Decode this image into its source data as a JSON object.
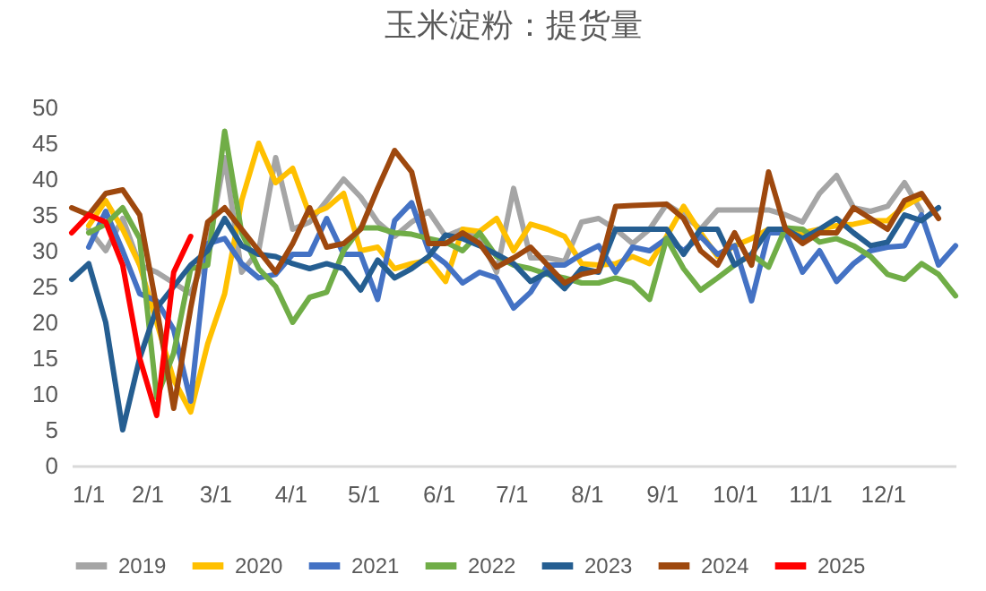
{
  "chart_data": {
    "type": "line",
    "title": "玉米淀粉：提货量",
    "x": [
      "--01-01",
      "--01-08",
      "--01-15",
      "--01-22",
      "--01-29",
      "--02-05",
      "--02-12",
      "--02-19",
      "--02-26",
      "--03-05",
      "--03-12",
      "--03-19",
      "--03-26",
      "--04-02",
      "--04-09",
      "--04-16",
      "--04-23",
      "--04-30",
      "--05-07",
      "--05-14",
      "--05-21",
      "--05-28",
      "--06-04",
      "--06-11",
      "--06-18",
      "--06-25",
      "--07-02",
      "--07-09",
      "--07-16",
      "--07-23",
      "--07-30",
      "--08-06",
      "--08-13",
      "--08-20",
      "--08-27",
      "--09-03",
      "--09-10",
      "--09-17",
      "--09-24",
      "--10-01",
      "--10-08",
      "--10-15",
      "--10-22",
      "--10-29",
      "--11-05",
      "--11-12",
      "--11-19",
      "--11-26",
      "--12-03",
      "--12-10",
      "--12-17",
      "--12-24",
      "--12-31"
    ],
    "xlim": [
      "--01-01",
      "--12-31"
    ],
    "xticks": [
      {
        "value": "--01-01",
        "label": "1/1"
      },
      {
        "value": "--02-01",
        "label": "2/1"
      },
      {
        "value": "--03-01",
        "label": "3/1"
      },
      {
        "value": "--04-01",
        "label": "4/1"
      },
      {
        "value": "--05-01",
        "label": "5/1"
      },
      {
        "value": "--06-01",
        "label": "6/1"
      },
      {
        "value": "--07-01",
        "label": "7/1"
      },
      {
        "value": "--08-01",
        "label": "8/1"
      },
      {
        "value": "--09-01",
        "label": "9/1"
      },
      {
        "value": "--10-01",
        "label": "10/1"
      },
      {
        "value": "--11-01",
        "label": "11/1"
      },
      {
        "value": "--12-01",
        "label": "12/1"
      }
    ],
    "ylim": [
      0,
      50
    ],
    "yticks": [
      0,
      5,
      10,
      15,
      20,
      25,
      30,
      35,
      40,
      45,
      50
    ],
    "grid": false,
    "legend": "bottom",
    "line_style": "solid",
    "series": [
      {
        "name": "2019",
        "color": "#a5a5a5",
        "values": [
          null,
          33,
          30,
          34.5,
          28,
          27,
          25.5,
          24,
          30,
          43,
          27,
          30,
          43,
          33,
          34,
          37,
          40,
          37.5,
          34,
          32,
          34,
          35.5,
          32,
          33,
          32,
          27,
          38.7,
          29,
          29,
          28.5,
          34,
          34.5,
          33,
          31,
          33,
          36.5,
          35,
          33,
          35.7,
          35.7,
          35.7,
          35.7,
          35,
          34,
          38,
          40.5,
          36,
          35.5,
          36.2,
          39.5,
          35.5,
          null,
          null
        ]
      },
      {
        "name": "2020",
        "color": "#ffc000",
        "values": [
          null,
          33.5,
          37,
          33,
          28,
          20,
          12,
          7.5,
          17,
          24,
          37,
          45,
          39.5,
          41.5,
          35,
          36,
          38,
          30,
          30.5,
          27.5,
          28.2,
          28.7,
          25.7,
          33,
          32.7,
          34.5,
          30,
          33.7,
          33,
          32,
          28.2,
          28,
          28.2,
          29.2,
          28.2,
          32,
          36.2,
          32.5,
          29.2,
          30.7,
          31.7,
          33,
          33,
          32.5,
          33,
          33.5,
          33.7,
          34.2,
          34.2,
          36.2,
          37.5,
          null,
          null
        ]
      },
      {
        "name": "2021",
        "color": "#4472c4",
        "values": [
          null,
          30.5,
          35.5,
          30,
          24,
          23,
          19,
          9,
          31,
          31.7,
          28.2,
          26.2,
          26.7,
          29.5,
          29.5,
          34.5,
          29.5,
          29.5,
          23.2,
          34.2,
          36.7,
          30,
          28.2,
          25.5,
          27,
          26.2,
          22,
          24.2,
          28,
          28,
          29.5,
          30.7,
          27,
          30.5,
          30,
          31.7,
          30,
          32,
          29.5,
          30.7,
          23,
          32.5,
          32.5,
          27,
          30,
          25.7,
          28.2,
          30,
          30.5,
          30.7,
          35,
          28,
          30.7
        ]
      },
      {
        "name": "2022",
        "color": "#70ad47",
        "values": [
          null,
          32.5,
          33.7,
          36,
          31.7,
          9.5,
          15.7,
          27.5,
          28,
          46.7,
          32.5,
          27.5,
          25,
          20,
          23.5,
          24.2,
          30,
          33.2,
          33.2,
          32.5,
          32.3,
          31.7,
          31.2,
          30,
          32.5,
          29.2,
          28,
          27.5,
          26.7,
          26.2,
          25.5,
          25.5,
          26.2,
          25.5,
          23.2,
          31.7,
          27.5,
          24.5,
          26.2,
          28,
          29.5,
          27.7,
          33.2,
          33,
          31.2,
          31.7,
          30.7,
          29.2,
          26.7,
          26,
          28.2,
          26.7,
          23.7
        ]
      },
      {
        "name": "2023",
        "color": "#255e91",
        "values": [
          26,
          28.2,
          20,
          5,
          15,
          22,
          25,
          28,
          30,
          34.5,
          30.7,
          29.5,
          29.2,
          28.2,
          27.5,
          28.2,
          27.5,
          24.5,
          28.7,
          26.2,
          27.5,
          29.2,
          32.2,
          31.7,
          30.7,
          29.5,
          28.2,
          25.7,
          27,
          24.7,
          27.5,
          27,
          33,
          33,
          33,
          33,
          29.5,
          33,
          33,
          28,
          29.5,
          33,
          33,
          31.7,
          33,
          34.5,
          32.5,
          30.7,
          31.2,
          35,
          34.2,
          36,
          null
        ]
      },
      {
        "name": "2024",
        "color": "#9e480e",
        "values": [
          36,
          35,
          38,
          38.5,
          35,
          22,
          8,
          22,
          34,
          36,
          33,
          30,
          27,
          31,
          36,
          30.5,
          31,
          33,
          38.7,
          44,
          41,
          31,
          31,
          32.5,
          31,
          27.7,
          29,
          30.5,
          28,
          25.5,
          26.7,
          27.2,
          36.2,
          36.3,
          36.4,
          36.5,
          34.5,
          30,
          28,
          32.5,
          28,
          41,
          33,
          31,
          32.5,
          32.5,
          36,
          34.5,
          33,
          37,
          38,
          34.5,
          null
        ]
      },
      {
        "name": "2025",
        "color": "#ff0000",
        "values": [
          32.5,
          35,
          34,
          28,
          15,
          7,
          27,
          32,
          null,
          null,
          null,
          null,
          null,
          null,
          null,
          null,
          null,
          null,
          null,
          null,
          null,
          null,
          null,
          null,
          null,
          null,
          null,
          null,
          null,
          null,
          null,
          null,
          null,
          null,
          null,
          null,
          null,
          null,
          null,
          null,
          null,
          null,
          null,
          null,
          null,
          null,
          null,
          null,
          null,
          null,
          null,
          null,
          null
        ]
      }
    ]
  }
}
